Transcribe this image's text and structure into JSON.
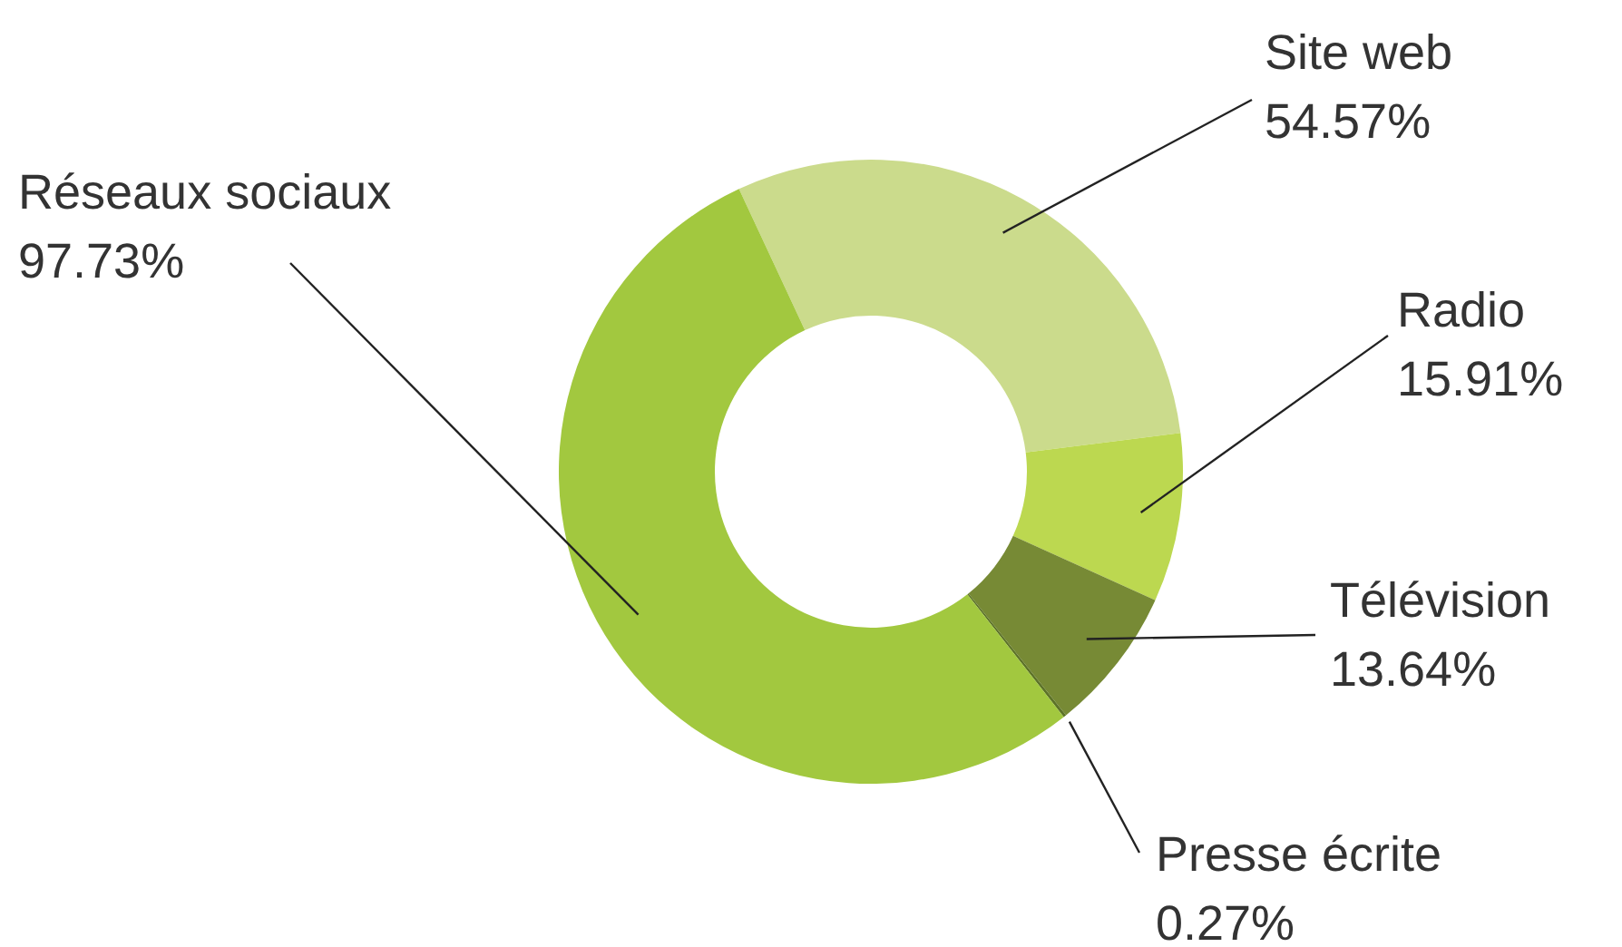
{
  "chart_data": {
    "type": "donut",
    "categories": [
      "Site web",
      "Radio",
      "Télévision",
      "Presse écrite",
      "Réseaux sociaux"
    ],
    "values": [
      54.57,
      15.91,
      13.64,
      0.27,
      97.73
    ],
    "value_labels": [
      "54.57%",
      "15.91%",
      "13.64%",
      "0.27%",
      "97.73%"
    ],
    "colors": [
      "#cbdb8c",
      "#bcd850",
      "#778a35",
      "#5d7327",
      "#a2c83f"
    ],
    "legend": false
  }
}
